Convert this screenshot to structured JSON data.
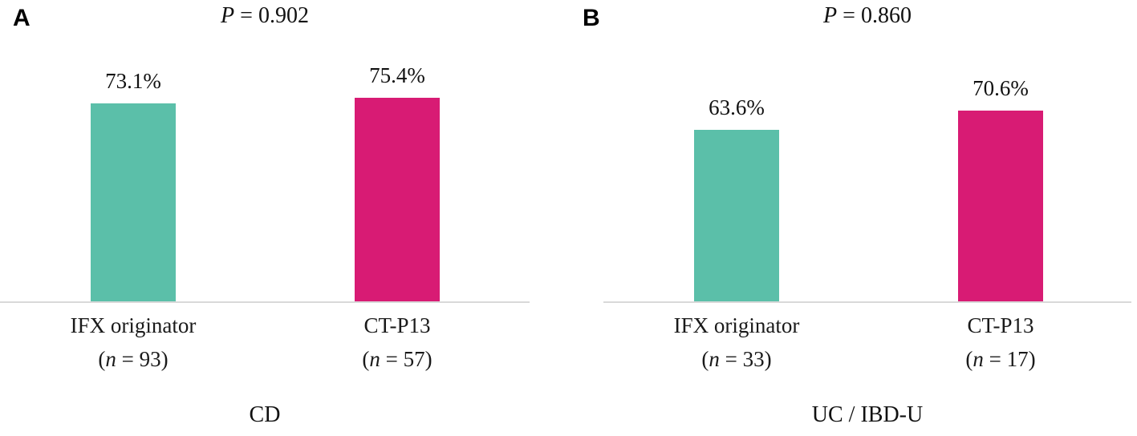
{
  "chart_data": [
    {
      "type": "bar",
      "panel_letter": "A",
      "title": "CD",
      "p_label": {
        "symbol": "P",
        "rest": " = 0.902"
      },
      "p_value": 0.902,
      "categories": [
        "IFX originator",
        "CT-P13"
      ],
      "sample_sizes": [
        93,
        57
      ],
      "n_labels": [
        {
          "open": "(",
          "symbol": "n",
          "rest": " = 93)"
        },
        {
          "open": "(",
          "symbol": "n",
          "rest": " = 57)"
        }
      ],
      "values": [
        73.1,
        75.4
      ],
      "value_labels": [
        "73.1%",
        "75.4%"
      ],
      "bar_colors": [
        "#5bbfa9",
        "#d81b74"
      ],
      "ylim": [
        0,
        100
      ],
      "grid": false,
      "legend": "none",
      "y_axis": "hidden",
      "baseline_color": "#d9d9d9"
    },
    {
      "type": "bar",
      "panel_letter": "B",
      "title": "UC / IBD-U",
      "p_label": {
        "symbol": "P",
        "rest": " = 0.860"
      },
      "p_value": 0.86,
      "categories": [
        "IFX originator",
        "CT-P13"
      ],
      "sample_sizes": [
        33,
        17
      ],
      "n_labels": [
        {
          "open": "(",
          "symbol": "n",
          "rest": " = 33)"
        },
        {
          "open": "(",
          "symbol": "n",
          "rest": " = 17)"
        }
      ],
      "values": [
        63.6,
        70.6
      ],
      "value_labels": [
        "63.6%",
        "70.6%"
      ],
      "bar_colors": [
        "#5bbfa9",
        "#d81b74"
      ],
      "ylim": [
        0,
        100
      ],
      "grid": false,
      "legend": "none",
      "y_axis": "hidden",
      "baseline_color": "#d9d9d9"
    }
  ]
}
